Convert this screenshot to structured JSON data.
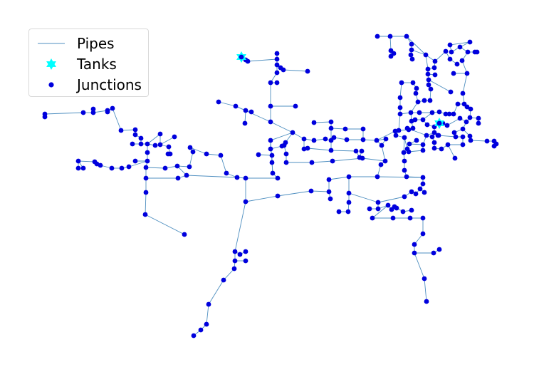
{
  "legend": {
    "pipes_label": "Pipes",
    "tanks_label": "Tanks",
    "junctions_label": "Junctions"
  },
  "colors": {
    "pipe": "#4f8fc0",
    "tank": "#00ffff",
    "junction": "#0000dd"
  },
  "icons": {
    "tank": "star-icon",
    "junction": "dot-icon"
  }
}
